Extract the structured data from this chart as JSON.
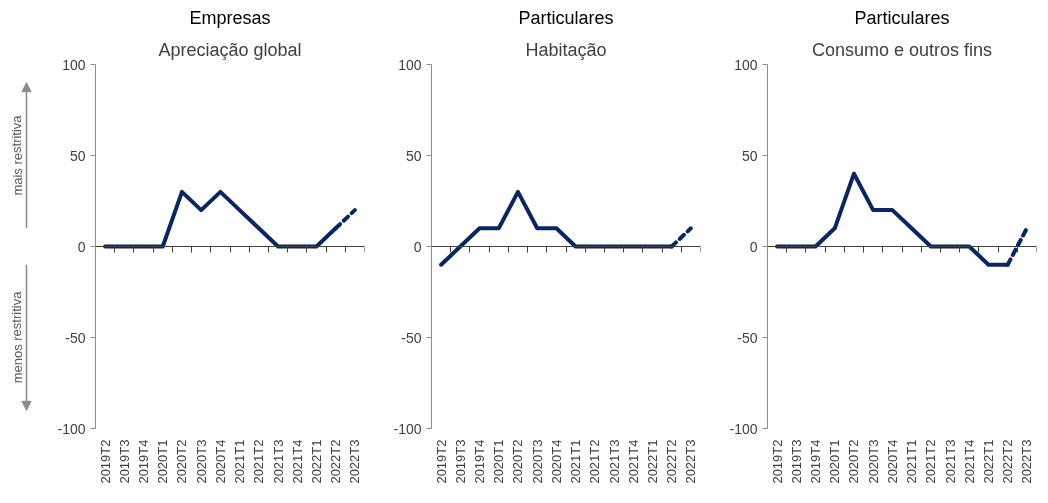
{
  "chart_data": [
    {
      "type": "line",
      "title": "Empresas",
      "subtitle": "Apreciação global",
      "categories": [
        "2019T2",
        "2019T3",
        "2019T4",
        "2020T1",
        "2020T2",
        "2020T3",
        "2020T4",
        "2021T1",
        "2021T2",
        "2021T3",
        "2021T4",
        "2022T1",
        "2022T2",
        "2022T3"
      ],
      "ylim": [
        -100,
        100
      ],
      "yticks": [
        -100,
        -50,
        0,
        50,
        100
      ],
      "annotations": [
        "mais restritiva",
        "menos restritiva"
      ],
      "series": [
        {
          "color": "#0b2560",
          "line_style": "solid",
          "values": [
            0,
            0,
            0,
            0,
            30,
            20,
            30,
            20,
            10,
            0,
            0,
            0,
            10,
            null
          ]
        },
        {
          "color": "#0b2560",
          "line_style": "dashed",
          "values": [
            null,
            null,
            null,
            null,
            null,
            null,
            null,
            null,
            null,
            null,
            null,
            null,
            10,
            20
          ]
        }
      ]
    },
    {
      "type": "line",
      "title": "Particulares",
      "subtitle": "Habitação",
      "categories": [
        "2019T2",
        "2019T3",
        "2019T4",
        "2020T1",
        "2020T2",
        "2020T3",
        "2020T4",
        "2021T1",
        "2021T2",
        "2021T3",
        "2021T4",
        "2022T1",
        "2022T2",
        "2022T3"
      ],
      "ylim": [
        -100,
        100
      ],
      "yticks": [
        -100,
        -50,
        0,
        50,
        100
      ],
      "series": [
        {
          "color": "#0b2560",
          "line_style": "solid",
          "values": [
            -10,
            0,
            10,
            10,
            30,
            10,
            10,
            0,
            0,
            0,
            0,
            0,
            0,
            null
          ]
        },
        {
          "color": "#0b2560",
          "line_style": "dashed",
          "values": [
            null,
            null,
            null,
            null,
            null,
            null,
            null,
            null,
            null,
            null,
            null,
            null,
            0,
            10
          ]
        }
      ]
    },
    {
      "type": "line",
      "title": "Particulares",
      "subtitle": "Consumo e outros fins",
      "categories": [
        "2019T2",
        "2019T3",
        "2019T4",
        "2020T1",
        "2020T2",
        "2020T3",
        "2020T4",
        "2021T1",
        "2021T2",
        "2021T3",
        "2021T4",
        "2022T1",
        "2022T2",
        "2022T3"
      ],
      "ylim": [
        -100,
        100
      ],
      "yticks": [
        -100,
        -50,
        0,
        50,
        100
      ],
      "series": [
        {
          "color": "#0b2560",
          "line_style": "solid",
          "values": [
            0,
            0,
            0,
            10,
            40,
            20,
            20,
            10,
            0,
            0,
            0,
            -10,
            -10,
            null
          ]
        },
        {
          "color": "#0b2560",
          "line_style": "dashed",
          "values": [
            null,
            null,
            null,
            null,
            null,
            null,
            null,
            null,
            null,
            null,
            null,
            null,
            -10,
            10
          ]
        }
      ]
    }
  ]
}
